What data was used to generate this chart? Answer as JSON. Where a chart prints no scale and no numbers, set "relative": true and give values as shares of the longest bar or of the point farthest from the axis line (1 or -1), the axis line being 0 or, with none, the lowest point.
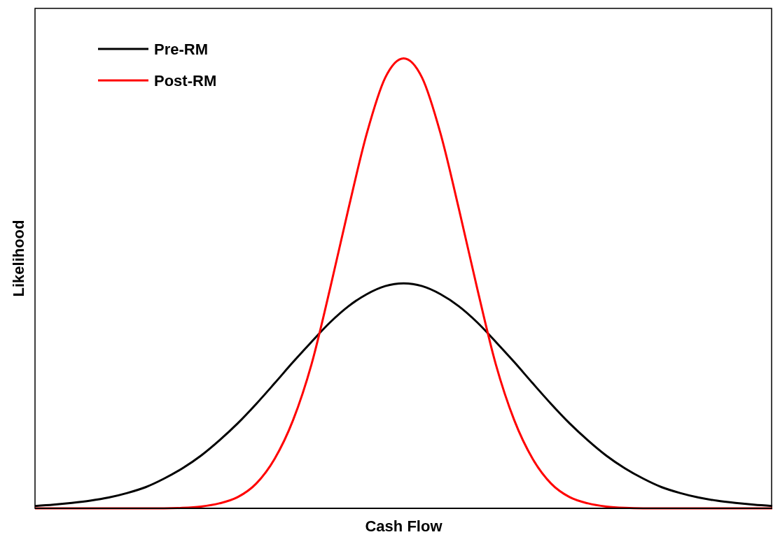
{
  "chart_data": {
    "type": "line",
    "relative": true,
    "xlabel": "Cash Flow",
    "ylabel": "Likelihood",
    "legend": "top left",
    "marker": "none",
    "line_style": "solid",
    "categories": [
      null,
      null,
      null,
      null,
      null,
      null,
      null,
      null,
      null,
      null,
      null,
      null,
      null,
      null,
      null,
      null,
      null,
      null,
      null,
      null,
      null,
      null,
      null,
      null,
      null,
      null,
      null,
      null,
      null,
      null,
      null,
      null,
      null,
      null,
      null,
      null,
      null,
      null,
      null,
      null,
      null
    ],
    "series": [
      {
        "name": "Pre-RM",
        "color": "#000000",
        "values": [
          0.005,
          0.008,
          0.012,
          0.017,
          0.024,
          0.034,
          0.047,
          0.066,
          0.089,
          0.117,
          0.151,
          0.189,
          0.232,
          0.278,
          0.325,
          0.37,
          0.413,
          0.449,
          0.476,
          0.494,
          0.5,
          0.494,
          0.476,
          0.449,
          0.413,
          0.37,
          0.325,
          0.278,
          0.232,
          0.189,
          0.151,
          0.117,
          0.089,
          0.066,
          0.047,
          0.034,
          0.024,
          0.017,
          0.012,
          0.008,
          0.005
        ]
      },
      {
        "name": "Post-RM",
        "color": "#ff0000",
        "values": [
          0,
          0,
          0,
          0,
          0,
          0,
          0,
          0,
          0.001,
          0.004,
          0.011,
          0.025,
          0.055,
          0.11,
          0.196,
          0.32,
          0.487,
          0.665,
          0.833,
          0.957,
          1,
          0.957,
          0.833,
          0.665,
          0.487,
          0.32,
          0.196,
          0.11,
          0.055,
          0.025,
          0.011,
          0.004,
          0.001,
          0,
          0,
          0,
          0,
          0,
          0,
          0,
          0
        ]
      }
    ]
  }
}
